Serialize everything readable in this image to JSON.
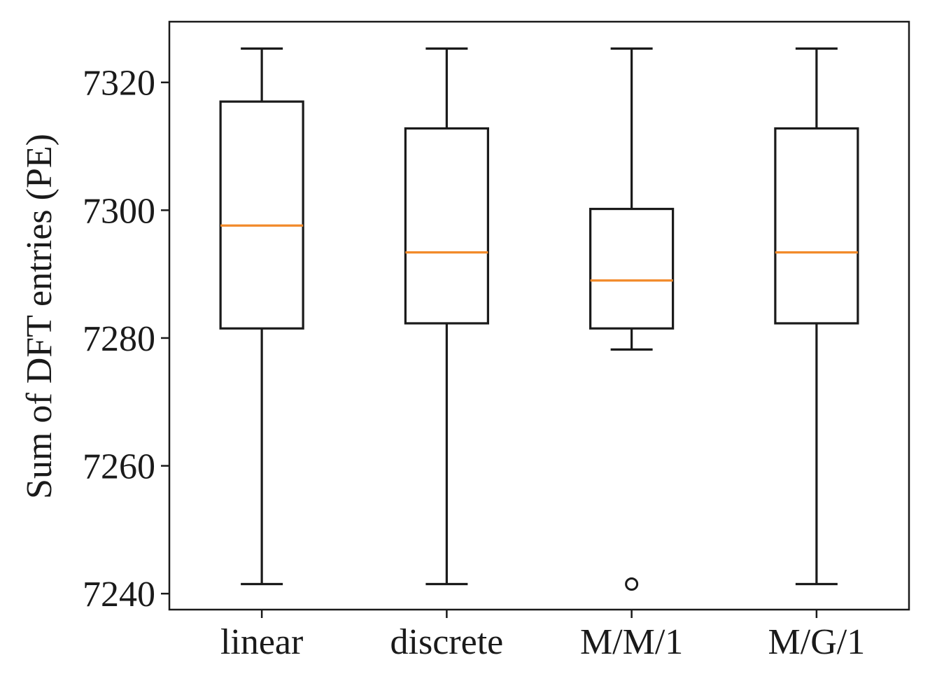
{
  "chart_data": {
    "type": "box",
    "title": "",
    "xlabel": "",
    "ylabel": "Sum of DFT entries (PE)",
    "ylim": [
      7237.5,
      7329.5
    ],
    "yticks": [
      7240,
      7260,
      7280,
      7300,
      7320
    ],
    "ytick_labels": [
      "7240",
      "7260",
      "7280",
      "7300",
      "7320"
    ],
    "categories": [
      "linear",
      "discrete",
      "M/M/1",
      "M/G/1"
    ],
    "grid": false,
    "legend": "none",
    "colors": {
      "box": "#1a1a1a",
      "median": "#f28a2a",
      "axes": "#1a1a1a"
    },
    "series": [
      {
        "name": "linear",
        "whisker_low": 7241.5,
        "q1": 7281.5,
        "median": 7297.6,
        "q3": 7317.0,
        "whisker_high": 7325.3,
        "outliers": []
      },
      {
        "name": "discrete",
        "whisker_low": 7241.5,
        "q1": 7282.3,
        "median": 7293.4,
        "q3": 7312.8,
        "whisker_high": 7325.3,
        "outliers": []
      },
      {
        "name": "M/M/1",
        "whisker_low": 7278.2,
        "q1": 7281.5,
        "median": 7289.0,
        "q3": 7300.2,
        "whisker_high": 7325.3,
        "outliers": [
          7241.5
        ]
      },
      {
        "name": "M/G/1",
        "whisker_low": 7241.5,
        "q1": 7282.3,
        "median": 7293.4,
        "q3": 7312.8,
        "whisker_high": 7325.3,
        "outliers": []
      }
    ]
  }
}
